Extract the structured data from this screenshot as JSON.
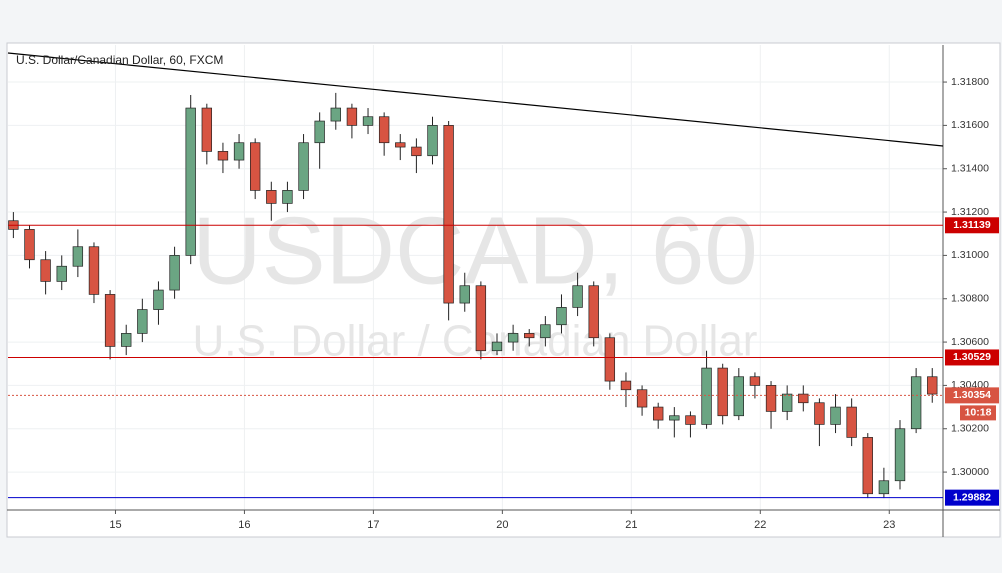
{
  "chart_data": {
    "type": "candlestick",
    "title": "U.S. Dollar/Canadian Dollar, 60, FXCM",
    "watermark": "USDCAD, 60",
    "watermark_subtitle": "U.S. Dollar / Canadian Dollar",
    "x": [
      -19,
      -16,
      -13,
      -10,
      -7,
      -4,
      -1,
      2,
      5,
      8,
      11,
      14,
      17,
      20,
      23,
      26,
      29,
      32,
      35,
      38,
      41,
      44,
      47,
      50,
      53,
      56,
      59,
      62,
      65,
      68,
      71,
      74,
      77,
      80,
      83,
      86,
      89,
      92,
      95,
      98,
      101,
      104,
      107,
      110,
      113,
      116,
      119,
      122,
      125,
      128,
      131,
      134,
      137,
      140,
      143,
      146,
      149,
      152
    ],
    "open": [
      1.3116,
      1.3112,
      1.3098,
      1.3088,
      1.3095,
      1.3104,
      1.3082,
      1.3058,
      1.3064,
      1.3075,
      1.3084,
      1.31,
      1.3168,
      1.3148,
      1.3144,
      1.3152,
      1.313,
      1.3124,
      1.313,
      1.3152,
      1.3162,
      1.3168,
      1.316,
      1.3164,
      1.3152,
      1.315,
      1.3146,
      1.316,
      1.3078,
      1.3086,
      1.3056,
      1.306,
      1.3064,
      1.3062,
      1.3068,
      1.3076,
      1.3086,
      1.3062,
      1.3042,
      1.3038,
      1.303,
      1.3024,
      1.3026,
      1.3022,
      1.3048,
      1.3026,
      1.3044,
      1.304,
      1.3028,
      1.3036,
      1.3032,
      1.3022,
      1.303,
      1.3016,
      1.299,
      1.2996,
      1.302,
      1.3044
    ],
    "high": [
      1.312,
      1.3114,
      1.3102,
      1.31,
      1.3112,
      1.3106,
      1.3084,
      1.3068,
      1.308,
      1.3088,
      1.3104,
      1.3174,
      1.317,
      1.3152,
      1.3156,
      1.3154,
      1.3134,
      1.3134,
      1.3156,
      1.3166,
      1.3175,
      1.317,
      1.3168,
      1.3166,
      1.3156,
      1.3154,
      1.3164,
      1.3162,
      1.3092,
      1.3088,
      1.3064,
      1.3068,
      1.3066,
      1.3072,
      1.3082,
      1.3092,
      1.3088,
      1.3064,
      1.3046,
      1.304,
      1.3032,
      1.303,
      1.3028,
      1.3056,
      1.305,
      1.3048,
      1.3046,
      1.3042,
      1.304,
      1.304,
      1.3034,
      1.3036,
      1.3034,
      1.3018,
      1.3002,
      1.3024,
      1.3048,
      1.3048
    ],
    "low": [
      1.3108,
      1.3094,
      1.3082,
      1.3084,
      1.309,
      1.3078,
      1.3052,
      1.3054,
      1.306,
      1.3068,
      1.308,
      1.3096,
      1.3142,
      1.3138,
      1.314,
      1.3126,
      1.3116,
      1.312,
      1.3126,
      1.314,
      1.3158,
      1.3154,
      1.3156,
      1.3146,
      1.3144,
      1.3138,
      1.3142,
      1.307,
      1.3074,
      1.3052,
      1.3054,
      1.3056,
      1.3058,
      1.3058,
      1.3064,
      1.3072,
      1.3058,
      1.3038,
      1.303,
      1.3026,
      1.302,
      1.3016,
      1.3016,
      1.302,
      1.3022,
      1.3024,
      1.3034,
      1.302,
      1.3024,
      1.3028,
      1.3012,
      1.3018,
      1.3012,
      1.2988,
      1.2988,
      1.2992,
      1.3018,
      1.3032
    ],
    "close": [
      1.3112,
      1.3098,
      1.3088,
      1.3095,
      1.3104,
      1.3082,
      1.3058,
      1.3064,
      1.3075,
      1.3084,
      1.31,
      1.3168,
      1.3148,
      1.3144,
      1.3152,
      1.313,
      1.3124,
      1.313,
      1.3152,
      1.3162,
      1.3168,
      1.316,
      1.3164,
      1.3152,
      1.315,
      1.3146,
      1.316,
      1.3078,
      1.3086,
      1.3056,
      1.306,
      1.3064,
      1.3062,
      1.3068,
      1.3076,
      1.3086,
      1.3062,
      1.3042,
      1.3038,
      1.303,
      1.3024,
      1.3026,
      1.3022,
      1.3048,
      1.3026,
      1.3044,
      1.304,
      1.3028,
      1.3036,
      1.3032,
      1.3022,
      1.303,
      1.3016,
      1.299,
      1.2996,
      1.302,
      1.3044,
      1.3036
    ],
    "up_color": "#6ba583",
    "down_color": "#d75442",
    "xlim": [
      -20,
      154
    ],
    "xticks": [
      {
        "value": 0,
        "label": "15"
      },
      {
        "value": 24,
        "label": "16"
      },
      {
        "value": 48,
        "label": "17"
      },
      {
        "value": 72,
        "label": "20"
      },
      {
        "value": 96,
        "label": "21"
      },
      {
        "value": 120,
        "label": "22"
      },
      {
        "value": 144,
        "label": "23"
      }
    ],
    "ylim": [
      1.29825,
      1.31971
    ],
    "yticks": [
      {
        "value": 1.3,
        "label": "1.30000"
      },
      {
        "value": 1.302,
        "label": "1.30200"
      },
      {
        "value": 1.304,
        "label": "1.30400"
      },
      {
        "value": 1.306,
        "label": "1.30600"
      },
      {
        "value": 1.308,
        "label": "1.30800"
      },
      {
        "value": 1.31,
        "label": "1.31000"
      },
      {
        "value": 1.312,
        "label": "1.31200"
      },
      {
        "value": 1.314,
        "label": "1.31400"
      },
      {
        "value": 1.316,
        "label": "1.31600"
      },
      {
        "value": 1.318,
        "label": "1.31800"
      }
    ],
    "grid": true,
    "hlines": [
      {
        "value": 1.31139,
        "color": "#cc0000"
      },
      {
        "value": 1.30529,
        "color": "#cc0000"
      },
      {
        "value": 1.29882,
        "color": "#0000cc"
      }
    ],
    "trendline": {
      "x": [
        -20,
        154
      ],
      "values": [
        1.31934,
        1.31505
      ],
      "color": "#000000"
    },
    "last_price": 1.30354,
    "countdown": "10:18"
  }
}
